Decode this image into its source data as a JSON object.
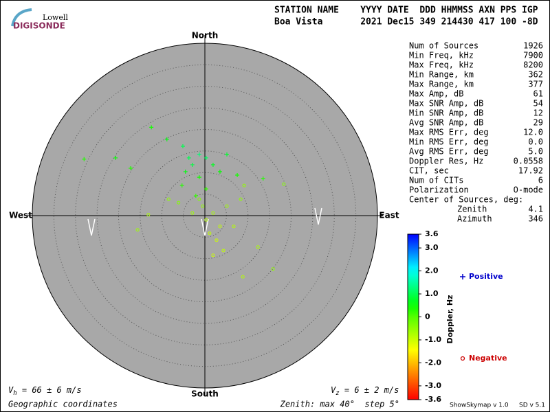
{
  "logo": {
    "top": "Lowell",
    "main": "DIGISONDE"
  },
  "header": {
    "labels": "STATION NAME    YYYY DATE  DDD HHMMSS AXN PPS IGP",
    "values": "Boa Vista       2021 Dec15 349 214430 417 100 -8D"
  },
  "stats": {
    "rows": [
      [
        "Num of Sources",
        "1926"
      ],
      [
        "Min Freq, kHz",
        "7900"
      ],
      [
        "Max Freq, kHz",
        "8200"
      ],
      [
        "Min Range, km",
        "362"
      ],
      [
        "Max Range, km",
        "377"
      ],
      [
        "Max Amp, dB",
        "61"
      ],
      [
        "Max SNR Amp, dB",
        "54"
      ],
      [
        "Min SNR Amp, dB",
        "12"
      ],
      [
        "Avg SNR Amp, dB",
        "29"
      ],
      [
        "Max RMS Err, deg",
        "12.0"
      ],
      [
        "Min RMS Err, deg",
        "0.0"
      ],
      [
        "Avg RMS Err, deg",
        "5.0"
      ],
      [
        "Doppler Res, Hz",
        "0.0558"
      ],
      [
        "CIT, sec",
        "17.92"
      ],
      [
        "Num of CITs",
        "6"
      ],
      [
        "Polarization",
        "O-mode"
      ]
    ],
    "center_title": "Center of Sources, deg:",
    "center_rows": [
      [
        "Zenith",
        "4.1"
      ],
      [
        "Azimuth",
        "346"
      ]
    ]
  },
  "footer": {
    "vh": {
      "symbol": "V",
      "subscript": "h",
      "text": " = 66 ± 6 m/s"
    },
    "vz": {
      "symbol": "V",
      "subscript": "z",
      "text": " = 6 ± 2 m/s"
    },
    "coords": "Geographic coordinates",
    "zenith": "Zenith: max 40°  step 5°",
    "version": "ShowSkymap v 1.0",
    "sd": "SD v 5.1"
  },
  "chart_data": {
    "type": "scatter",
    "directions": {
      "north": "North",
      "south": "South",
      "east": "East",
      "west": "West"
    },
    "xlim": [
      -40,
      40
    ],
    "ylim": [
      -40,
      40
    ],
    "rticks": [
      5,
      10,
      15,
      20,
      25,
      30,
      35,
      40
    ],
    "colorbar": {
      "title": "Doppler, Hz",
      "lim": [
        -3.6,
        3.6
      ],
      "ticks": [
        3.6,
        {
          "value": 3,
          "label": "3.0"
        },
        {
          "value": 2,
          "label": "2.0"
        },
        {
          "value": 1,
          "label": "1.0"
        },
        0,
        {
          "value": -1,
          "label": "-1.0"
        },
        {
          "value": -2,
          "label": "-2.0"
        },
        {
          "value": -3,
          "label": "-3.0"
        },
        -3.6
      ]
    },
    "series": [
      {
        "name": "Positive",
        "color": "#0000cc",
        "marker": "plus",
        "x": [
          -12.4,
          -8.8,
          -5.1,
          -1.3,
          0.3,
          -2.9,
          1.9,
          -4.5,
          -1.3,
          3.5,
          -17.2,
          -20.7,
          -28,
          7.5,
          -5.3,
          0.3,
          -2.1,
          13.5,
          5.1,
          -3.7
        ],
        "y": [
          20.5,
          17.7,
          16.1,
          14.2,
          13.4,
          11.8,
          11.8,
          10.2,
          8.9,
          10.2,
          11,
          13.4,
          13.1,
          9.4,
          7,
          6.2,
          4.6,
          8.6,
          14.2,
          13.4
        ],
        "doppler": [
          0.4,
          0.6,
          1.0,
          1.2,
          1.1,
          0.9,
          0.7,
          0.6,
          0.4,
          0.5,
          0.3,
          0.5,
          0.3,
          0.4,
          0.3,
          0.2,
          0.2,
          0.3,
          0.8,
          1.0
        ]
      },
      {
        "name": "Negative",
        "color": "#cc0000",
        "marker": "circle",
        "x": [
          0.3,
          1.9,
          3.5,
          -0.5,
          5.1,
          1.1,
          2.7,
          6.7,
          -2.9,
          -1.3,
          8.3,
          -6.1,
          -15.6,
          -13.1,
          8.8,
          15.8,
          12.3,
          1.9,
          18.3,
          -8.4,
          9.1,
          4.3
        ],
        "y": [
          -1,
          0.6,
          -2.5,
          2.2,
          2.2,
          -4.1,
          -5.7,
          -2.5,
          0.6,
          3.8,
          3.8,
          3,
          -3.3,
          0.2,
          -14.2,
          -12.4,
          -7.3,
          -9.2,
          7.3,
          3.8,
          7,
          -8.1
        ],
        "doppler": [
          -0.8,
          -0.7,
          -0.9,
          -0.5,
          -0.6,
          -0.9,
          -1.0,
          -0.8,
          -0.6,
          -0.4,
          -0.5,
          -0.4,
          -0.6,
          -0.7,
          -0.8,
          -0.5,
          -0.7,
          -1.0,
          -0.4,
          -0.5,
          -0.5,
          -0.9
        ]
      }
    ]
  }
}
